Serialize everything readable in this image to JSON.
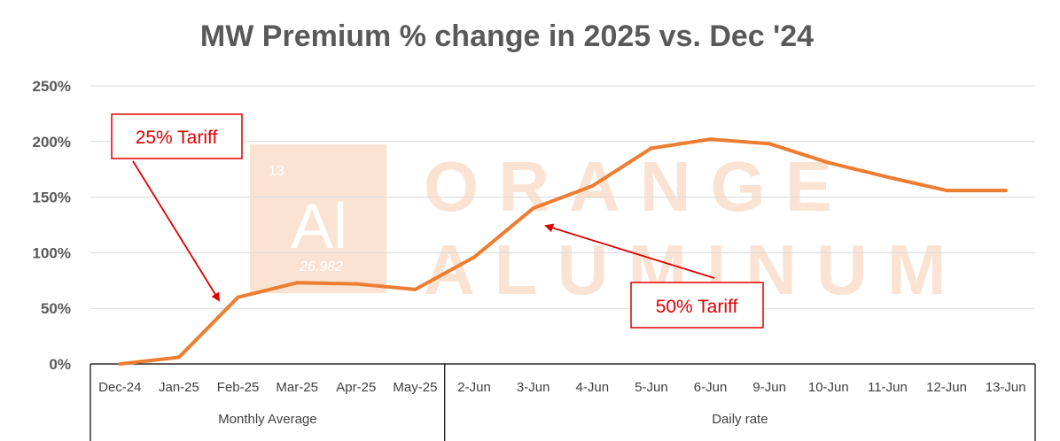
{
  "chart_data": {
    "type": "line",
    "title": "MW Premium % change in 2025 vs. Dec '24",
    "categories": [
      "Dec-24",
      "Jan-25",
      "Feb-25",
      "Mar-25",
      "Apr-25",
      "May-25",
      "2-Jun",
      "3-Jun",
      "4-Jun",
      "5-Jun",
      "6-Jun",
      "9-Jun",
      "10-Jun",
      "11-Jun",
      "12-Jun",
      "13-Jun"
    ],
    "series": [
      {
        "values": [
          0,
          6,
          60,
          73,
          72,
          67,
          96,
          140,
          160,
          194,
          202,
          198,
          181,
          168,
          156,
          156
        ]
      }
    ],
    "y_ticks": [
      "0%",
      "50%",
      "100%",
      "150%",
      "200%",
      "250%"
    ],
    "ylim": [
      0,
      250
    ],
    "grid": true,
    "groups": [
      {
        "label": "Monthly Average",
        "start": 0,
        "end": 5
      },
      {
        "label": "Daily rate",
        "start": 6,
        "end": 15
      }
    ],
    "annotations": [
      {
        "text": "25% Tariff",
        "target_index": 2
      },
      {
        "text": "50% Tariff",
        "target_index": 7
      }
    ],
    "colors": {
      "line": "#ed7d31",
      "grid": "#d9d9d9",
      "annotation": "#e00000",
      "watermark": "#fbe3d3"
    }
  },
  "watermark": {
    "number": "13",
    "symbol": "Al",
    "mass": "26.982",
    "line1": "ORANGE",
    "line2": "ALUMINUM"
  }
}
